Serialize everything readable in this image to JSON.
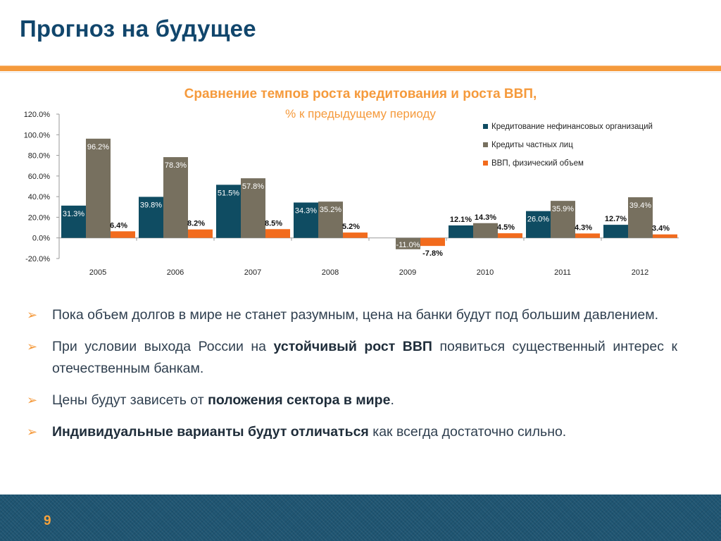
{
  "slide": {
    "title": "Прогноз на будущее",
    "page_number": "9"
  },
  "colors": {
    "accent_orange": "#f59a3c",
    "title_blue": "#11466c",
    "series_teal": "#0f4c62",
    "series_gray": "#77705f",
    "series_orange": "#f26b1d"
  },
  "chart_data": {
    "type": "bar",
    "title": "Сравнение темпов роста кредитования и роста ВВП,",
    "subtitle": "% к предыдущему периоду",
    "categories": [
      "2005",
      "2006",
      "2007",
      "2008",
      "2009",
      "2010",
      "2011",
      "2012"
    ],
    "series": [
      {
        "name": "Кредитование нефинансовых организаций",
        "color": "#0f4c62",
        "values": [
          31.3,
          39.8,
          51.5,
          34.3,
          null,
          12.1,
          26.0,
          12.7
        ]
      },
      {
        "name": "Кредиты частных лиц",
        "color": "#77705f",
        "values": [
          96.2,
          78.3,
          57.8,
          35.2,
          -11.0,
          14.3,
          35.9,
          39.4
        ]
      },
      {
        "name": "ВВП, физический объем",
        "color": "#f26b1d",
        "values": [
          6.4,
          8.2,
          8.5,
          5.2,
          -7.8,
          4.5,
          4.3,
          3.4
        ]
      }
    ],
    "ylim": [
      -20,
      120
    ],
    "yticks": [
      120,
      100,
      80,
      60,
      40,
      20,
      0,
      -20
    ],
    "ytick_labels": [
      "120.0%",
      "100.0%",
      "80.0%",
      "60.0%",
      "40.0%",
      "20.0%",
      "0.0%",
      "-20.0%"
    ],
    "value_labels": [
      [
        "31.3%",
        "39.8%",
        "51.5%",
        "34.3%",
        "",
        "12.1%",
        "26.0%",
        "12.7%"
      ],
      [
        "96.2%",
        "78.3%",
        "57.8%",
        "35.2%",
        "-11.0%",
        "14.3%",
        "35.9%",
        "39.4%"
      ],
      [
        "6.4%",
        "8.2%",
        "8.5%",
        "5.2%",
        "-7.8%",
        "4.5%",
        "4.3%",
        "3.4%"
      ]
    ],
    "legend_position": "top-right",
    "grid": false
  },
  "bullets": [
    {
      "parts": [
        {
          "text": "Пока объем долгов в мире не станет разумным, цена на банки будут под большим давлением.",
          "bold": false
        }
      ]
    },
    {
      "parts": [
        {
          "text": "При условии выхода России на ",
          "bold": false
        },
        {
          "text": "устойчивый рост ВВП",
          "bold": true
        },
        {
          "text": " появиться существенный интерес к отечественным банкам.",
          "bold": false
        }
      ]
    },
    {
      "parts": [
        {
          "text": "Цены будут зависеть от ",
          "bold": false
        },
        {
          "text": "положения сектора в мире",
          "bold": true
        },
        {
          "text": ".",
          "bold": false
        }
      ]
    },
    {
      "parts": [
        {
          "text": "Индивидуальные варианты будут отличаться",
          "bold": true
        },
        {
          "text": " как всегда достаточно сильно.",
          "bold": false
        }
      ]
    }
  ],
  "bullet_marker": "➢"
}
